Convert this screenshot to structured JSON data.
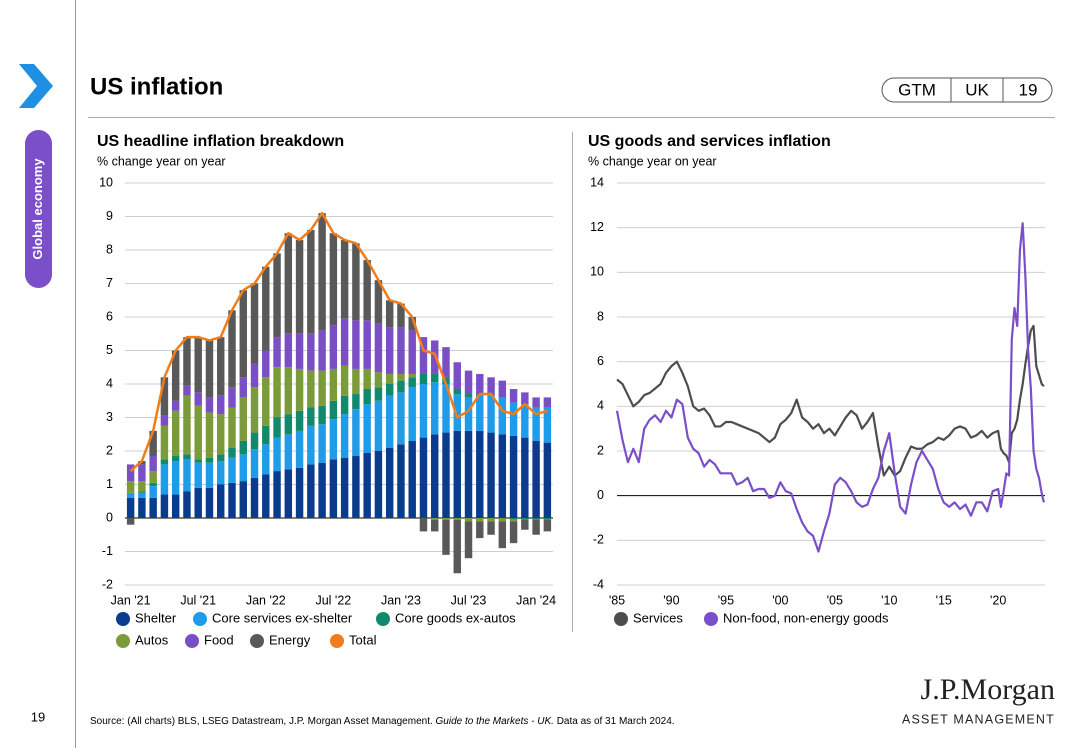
{
  "header": {
    "title": "US inflation",
    "tabs": [
      "GTM",
      "UK",
      "19"
    ]
  },
  "sidebar": {
    "section": "Global economy",
    "page_number": "19"
  },
  "footer": {
    "source": [
      "Source: (All charts) BLS, LSEG Datastream, J.P. Morgan Asset Management. ",
      "Guide to the Markets - UK.",
      " Data as of 31 March 2024."
    ],
    "logo": "J.P.Morgan",
    "logo_sub": "ASSET MANAGEMENT"
  },
  "chart_data": [
    {
      "type": "bar",
      "stacked": true,
      "title": "US headline inflation breakdown",
      "subtitle": "% change year on year",
      "categories": [
        "Jan '21",
        null,
        null,
        null,
        null,
        null,
        "Jul '21",
        null,
        null,
        null,
        null,
        null,
        "Jan '22",
        null,
        null,
        null,
        null,
        null,
        "Jul '22",
        null,
        null,
        null,
        null,
        null,
        "Jan '23",
        null,
        null,
        null,
        null,
        null,
        "Jul '23",
        null,
        null,
        null,
        null,
        null,
        "Jan '24",
        null
      ],
      "ylim": [
        -2,
        10
      ],
      "yticks": [
        -2,
        -1,
        0,
        1,
        2,
        3,
        4,
        5,
        6,
        7,
        8,
        9,
        10
      ],
      "grid": true,
      "series": [
        {
          "name": "Shelter",
          "color": "#0b3b8c",
          "values": [
            0.6,
            0.6,
            0.6,
            0.7,
            0.7,
            0.8,
            0.9,
            0.9,
            1.0,
            1.05,
            1.1,
            1.2,
            1.3,
            1.4,
            1.45,
            1.5,
            1.6,
            1.65,
            1.75,
            1.8,
            1.85,
            1.95,
            2.0,
            2.1,
            2.2,
            2.3,
            2.4,
            2.5,
            2.55,
            2.6,
            2.6,
            2.6,
            2.55,
            2.5,
            2.45,
            2.4,
            2.3,
            2.25
          ]
        },
        {
          "name": "Core services ex-shelter",
          "color": "#1e9be9",
          "values": [
            0.15,
            0.15,
            0.35,
            0.9,
            1.0,
            0.95,
            0.75,
            0.75,
            0.7,
            0.75,
            0.8,
            0.85,
            0.9,
            1.0,
            1.05,
            1.1,
            1.15,
            1.15,
            1.2,
            1.3,
            1.4,
            1.45,
            1.5,
            1.55,
            1.55,
            1.6,
            1.6,
            1.55,
            1.45,
            1.1,
            1.0,
            1.05,
            1.1,
            1.1,
            1.0,
            1.0,
            1.0,
            1.05
          ]
        },
        {
          "name": "Core goods ex-autos",
          "color": "#11896d",
          "values": [
            0,
            0.05,
            0.1,
            0.15,
            0.15,
            0.15,
            0.1,
            0.15,
            0.2,
            0.3,
            0.4,
            0.5,
            0.55,
            0.6,
            0.6,
            0.6,
            0.55,
            0.55,
            0.55,
            0.55,
            0.45,
            0.45,
            0.4,
            0.35,
            0.35,
            0.3,
            0.3,
            0.25,
            0.2,
            0.15,
            0.1,
            0.05,
            0,
            0,
            -0.05,
            -0.05,
            -0.05,
            -0.05
          ]
        },
        {
          "name": "Autos",
          "color": "#7b9a3a",
          "values": [
            0.35,
            0.3,
            0.35,
            1.0,
            1.35,
            1.75,
            1.6,
            1.35,
            1.2,
            1.2,
            1.3,
            1.35,
            1.45,
            1.5,
            1.4,
            1.25,
            1.1,
            1.05,
            0.95,
            0.9,
            0.75,
            0.6,
            0.45,
            0.3,
            0.2,
            0.1,
            0,
            -0.05,
            -0.05,
            -0.05,
            -0.1,
            -0.1,
            -0.1,
            -0.1,
            -0.05,
            0,
            0,
            0
          ]
        },
        {
          "name": "Food",
          "color": "#7a4fc6",
          "values": [
            0.5,
            0.5,
            0.45,
            0.3,
            0.3,
            0.3,
            0.4,
            0.45,
            0.55,
            0.6,
            0.6,
            0.7,
            0.8,
            0.9,
            1.0,
            1.05,
            1.1,
            1.2,
            1.3,
            1.4,
            1.45,
            1.45,
            1.45,
            1.4,
            1.4,
            1.3,
            1.1,
            1.0,
            0.9,
            0.8,
            0.7,
            0.6,
            0.55,
            0.5,
            0.4,
            0.35,
            0.3,
            0.3
          ]
        },
        {
          "name": "Energy",
          "color": "#595959",
          "values": [
            -0.2,
            0.1,
            0.75,
            1.15,
            1.5,
            1.45,
            1.65,
            1.7,
            1.75,
            2.3,
            2.6,
            2.4,
            2.5,
            2.5,
            3.0,
            2.8,
            3.1,
            3.5,
            2.75,
            2.35,
            2.3,
            1.8,
            1.3,
            0.8,
            0.7,
            0.4,
            -0.4,
            -0.35,
            -1.05,
            -1.6,
            -1.1,
            -0.5,
            -0.4,
            -0.8,
            -0.65,
            -0.3,
            -0.45,
            -0.35
          ]
        },
        {
          "name": "Total",
          "type": "line",
          "color": "#f07d1a",
          "values": [
            1.4,
            1.7,
            2.6,
            4.2,
            5.0,
            5.4,
            5.4,
            5.3,
            5.4,
            6.2,
            6.8,
            7.0,
            7.5,
            7.9,
            8.5,
            8.3,
            8.6,
            9.1,
            8.5,
            8.3,
            8.2,
            7.7,
            7.1,
            6.5,
            6.4,
            6.0,
            5.0,
            4.9,
            4.0,
            3.0,
            3.2,
            3.7,
            3.7,
            3.2,
            3.1,
            3.4,
            3.1,
            3.2
          ]
        }
      ]
    },
    {
      "type": "line",
      "title": "US goods and services inflation",
      "subtitle": "% change year on year",
      "x": [
        1985,
        1985.5,
        1986,
        1986.5,
        1987,
        1987.5,
        1988,
        1988.5,
        1989,
        1989.5,
        1990,
        1990.5,
        1991,
        1991.5,
        1992,
        1992.5,
        1993,
        1993.5,
        1994,
        1994.5,
        1995,
        1995.5,
        1996,
        1996.5,
        1997,
        1997.5,
        1998,
        1998.5,
        1999,
        1999.5,
        2000,
        2000.5,
        2001,
        2001.5,
        2002,
        2002.5,
        2003,
        2003.5,
        2004,
        2004.5,
        2005,
        2005.5,
        2006,
        2006.5,
        2007,
        2007.5,
        2008,
        2008.5,
        2009,
        2009.5,
        2010,
        2010.5,
        2011,
        2011.5,
        2012,
        2012.5,
        2013,
        2013.5,
        2014,
        2014.5,
        2015,
        2015.5,
        2016,
        2016.5,
        2017,
        2017.5,
        2018,
        2018.5,
        2019,
        2019.5,
        2020,
        2020.25,
        2020.5,
        2020.75,
        2021,
        2021.25,
        2021.5,
        2021.75,
        2022,
        2022.25,
        2022.5,
        2022.75,
        2023,
        2023.25,
        2023.5,
        2023.75,
        2024,
        2024.2
      ],
      "xlim": [
        1985,
        2024.3
      ],
      "xticks": [
        {
          "value": 1985,
          "label": "'85"
        },
        {
          "value": 1990,
          "label": "'90"
        },
        {
          "value": 1995,
          "label": "'95"
        },
        {
          "value": 2000,
          "label": "'00"
        },
        {
          "value": 2005,
          "label": "'05"
        },
        {
          "value": 2010,
          "label": "'10"
        },
        {
          "value": 2015,
          "label": "'15"
        },
        {
          "value": 2020,
          "label": "'20"
        }
      ],
      "ylim": [
        -4,
        14
      ],
      "yticks": [
        -4,
        -2,
        0,
        2,
        4,
        6,
        8,
        10,
        12,
        14
      ],
      "grid": true,
      "series": [
        {
          "name": "Services",
          "color": "#4d4d4d",
          "values": [
            5.2,
            5.0,
            4.5,
            4.0,
            4.2,
            4.5,
            4.6,
            4.8,
            5.0,
            5.5,
            5.8,
            6.0,
            5.5,
            4.9,
            4.0,
            3.8,
            3.9,
            3.6,
            3.1,
            3.1,
            3.3,
            3.3,
            3.2,
            3.1,
            3.0,
            2.9,
            2.8,
            2.6,
            2.4,
            2.6,
            3.2,
            3.4,
            3.7,
            4.3,
            3.5,
            3.3,
            3.0,
            3.2,
            2.8,
            3.0,
            2.7,
            3.1,
            3.5,
            3.8,
            3.6,
            3.0,
            3.3,
            3.7,
            2.2,
            0.9,
            1.3,
            0.9,
            1.1,
            1.7,
            2.2,
            2.1,
            2.1,
            2.3,
            2.4,
            2.6,
            2.5,
            2.7,
            3.0,
            3.1,
            3.0,
            2.6,
            2.7,
            2.9,
            2.6,
            2.8,
            2.9,
            2.1,
            1.9,
            1.8,
            1.5,
            2.8,
            3.0,
            3.4,
            4.3,
            5.0,
            5.9,
            6.7,
            7.4,
            7.6,
            5.8,
            5.4,
            5.0,
            4.9
          ]
        },
        {
          "name": "Non-food, non-energy goods",
          "color": "#7b4fc9",
          "values": [
            3.8,
            2.5,
            1.5,
            2.1,
            1.5,
            3.0,
            3.4,
            3.6,
            3.3,
            3.8,
            3.5,
            4.3,
            4.1,
            2.6,
            2.1,
            1.9,
            1.3,
            1.6,
            1.4,
            1.0,
            1.0,
            1.0,
            0.5,
            0.6,
            0.8,
            0.2,
            0.3,
            0.3,
            -0.1,
            0.0,
            0.6,
            0.2,
            0.1,
            -0.6,
            -1.2,
            -1.6,
            -1.8,
            -2.5,
            -1.6,
            -0.8,
            0.5,
            0.8,
            0.6,
            0.2,
            -0.3,
            -0.5,
            -0.4,
            0.3,
            0.8,
            2.0,
            2.8,
            1.0,
            -0.5,
            -0.8,
            0.5,
            1.5,
            2.0,
            1.6,
            1.2,
            0.3,
            -0.3,
            -0.5,
            -0.3,
            -0.6,
            -0.4,
            -0.9,
            -0.3,
            -0.3,
            -0.7,
            0.2,
            0.3,
            -0.5,
            0.2,
            1.0,
            0.9,
            7.0,
            8.4,
            7.6,
            11.0,
            12.2,
            9.8,
            6.5,
            4.8,
            2.0,
            1.2,
            0.8,
            0.1,
            -0.3
          ]
        }
      ]
    }
  ]
}
